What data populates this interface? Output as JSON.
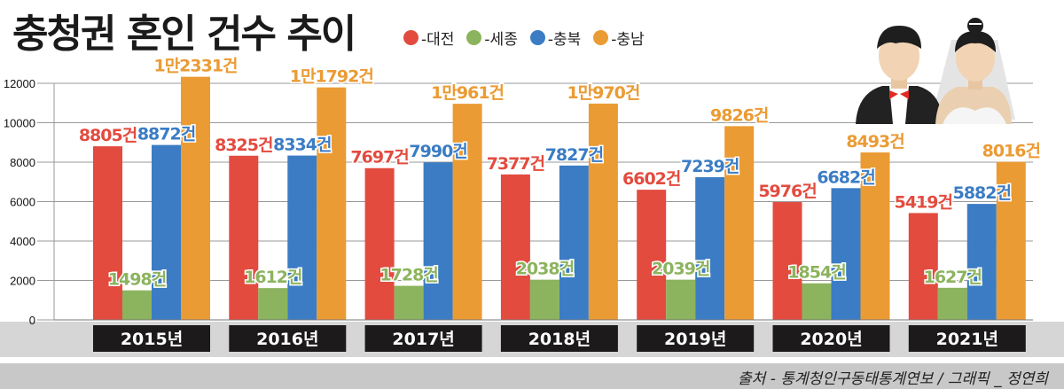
{
  "title": "충청권 혼인 건수 추이",
  "source": "출처 - 통계청인구동태통계연보 / 그래픽 _ 정연희",
  "illustration": "bride-and-groom",
  "chart_data": {
    "type": "bar",
    "categories": [
      "2015년",
      "2016년",
      "2017년",
      "2018년",
      "2019년",
      "2020년",
      "2021년"
    ],
    "ylim": [
      0,
      12000
    ],
    "yticks": [
      "0",
      "2000",
      "4000",
      "6000",
      "8000",
      "10000",
      "12000"
    ],
    "grid": true,
    "legend_position": "top",
    "series": [
      {
        "name": "-대전",
        "color": "#e34b3f",
        "values": [
          8805,
          8325,
          7697,
          7377,
          6602,
          5976,
          5419
        ],
        "labels": [
          "8805건",
          "8325건",
          "7697건",
          "7377건",
          "6602건",
          "5976건",
          "5419건"
        ]
      },
      {
        "name": "-세종",
        "color": "#8cb35e",
        "values": [
          1498,
          1612,
          1728,
          2038,
          2039,
          1854,
          1627
        ],
        "labels": [
          "1498건",
          "1612건",
          "1728건",
          "2038건",
          "2039건",
          "1854건",
          "1627건"
        ]
      },
      {
        "name": "-충북",
        "color": "#3b7cc4",
        "values": [
          8872,
          8334,
          7990,
          7827,
          7239,
          6682,
          5882
        ],
        "labels": [
          "8872건",
          "8334건",
          "7990건",
          "7827건",
          "7239건",
          "6682건",
          "5882건"
        ]
      },
      {
        "name": "-충남",
        "color": "#eb9b34",
        "values": [
          12331,
          11792,
          10961,
          10970,
          9826,
          8493,
          8016
        ],
        "labels": [
          "1만2331건",
          "1만1792건",
          "1만961건",
          "1만970건",
          "9826건",
          "8493건",
          "8016건"
        ]
      }
    ]
  }
}
